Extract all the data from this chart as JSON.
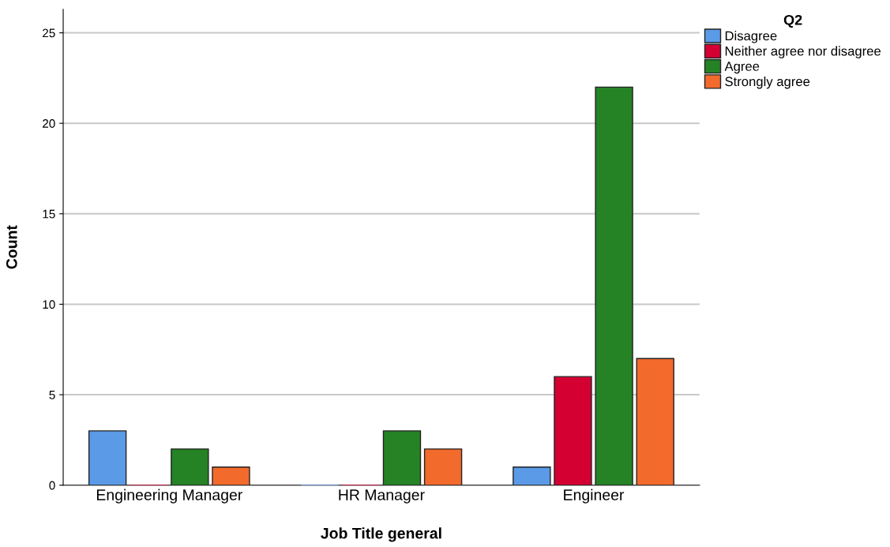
{
  "chart_data": {
    "type": "bar",
    "xlabel": "Job Title general",
    "ylabel": "Count",
    "legend_title": "Q2",
    "categories": [
      "Engineering Manager",
      "HR Manager",
      "Engineer"
    ],
    "series": [
      {
        "name": "Disagree",
        "color": "#5b9ae6",
        "values": [
          3,
          0,
          1
        ]
      },
      {
        "name": "Neither agree nor disagree",
        "color": "#d50032",
        "values": [
          0,
          0,
          6
        ]
      },
      {
        "name": "Agree",
        "color": "#258225",
        "values": [
          2,
          3,
          22
        ]
      },
      {
        "name": "Strongly agree",
        "color": "#f26a2c",
        "values": [
          1,
          2,
          7
        ]
      }
    ],
    "ylim": [
      0,
      26.3
    ],
    "yticks": [
      0,
      5,
      10,
      15,
      20,
      25
    ],
    "grid": "y",
    "legend": "top right"
  }
}
